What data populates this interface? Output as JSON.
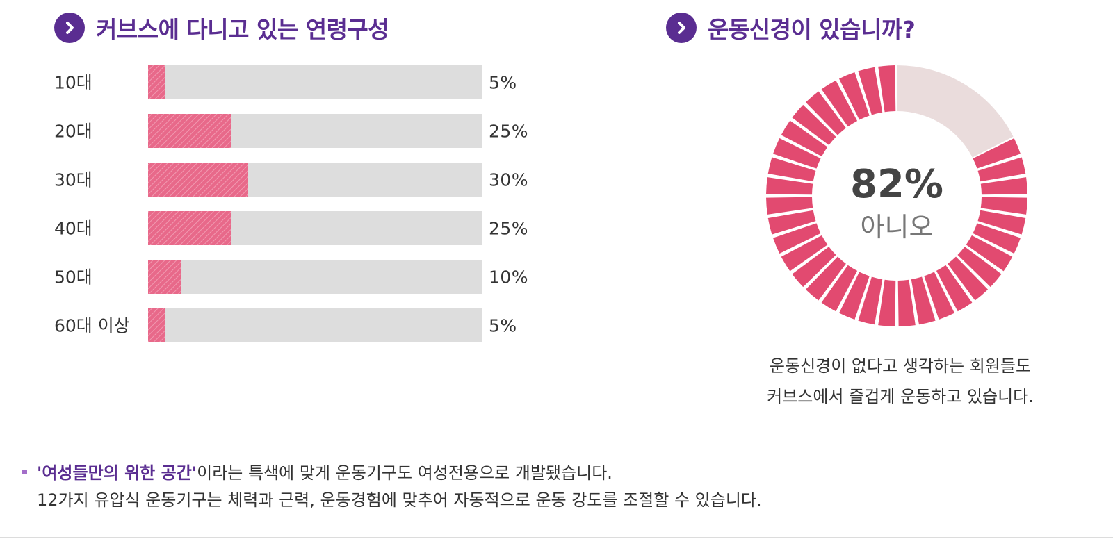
{
  "left_section": {
    "title": "커브스에 다니고 있는 연령구성"
  },
  "right_section": {
    "title": "운동신경이 있습니까?",
    "donut_value": "82%",
    "donut_label": "아니오",
    "caption_line1": "운동신경이 없다고 생각하는 회원들도",
    "caption_line2": "커브스에서 즐겁게 운동하고 있습니다."
  },
  "note": {
    "highlight": "'여성들만의 위한 공간'",
    "line1_rest": "이라는 특색에 맞게 운동기구도 여성전용으로 개발됐습니다.",
    "line2": "12가지 유압식 운동기구는 체력과 근력, 운동경험에 맞추어 자동적으로 운동 강도를 조절할 수 있습니다."
  },
  "colors": {
    "accent_purple": "#5a2d91",
    "bar_fill": "#e8698a",
    "bar_track": "#dddddd",
    "donut_fill": "#e24a70",
    "donut_remainder": "#eadcdc"
  },
  "icons": {
    "title_bullet": "chevron-right-icon"
  },
  "chart_data": [
    {
      "type": "bar",
      "orientation": "horizontal",
      "categories": [
        "10대",
        "20대",
        "30대",
        "40대",
        "50대",
        "60대 이상"
      ],
      "values": [
        5,
        25,
        30,
        25,
        10,
        5
      ],
      "value_labels": [
        "5%",
        "25%",
        "30%",
        "25%",
        "10%",
        "5%"
      ],
      "xlim": [
        0,
        100
      ],
      "grid": false
    },
    {
      "type": "pie",
      "style": "donut",
      "categories": [
        "아니오",
        ""
      ],
      "values": [
        82,
        18
      ]
    }
  ]
}
